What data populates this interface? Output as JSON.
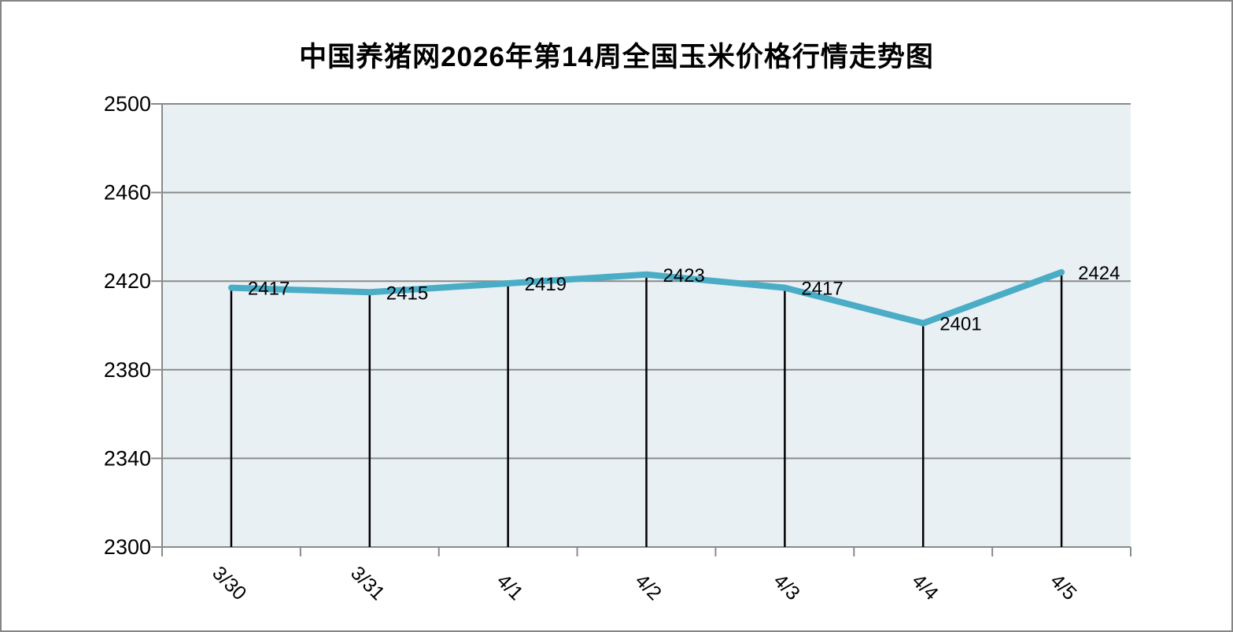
{
  "chart_data": {
    "type": "line",
    "title": "中国养猪网2026年第14周全国玉米价格行情走势图",
    "categories": [
      "3/30",
      "3/31",
      "4/1",
      "4/2",
      "4/3",
      "4/4",
      "4/5"
    ],
    "values": [
      2417,
      2415,
      2419,
      2423,
      2417,
      2401,
      2424
    ],
    "data_labels": [
      "2417",
      "2415",
      "2419",
      "2423",
      "2417",
      "2401",
      "2424"
    ],
    "xlabel": "",
    "ylabel": "",
    "ylim": [
      2300,
      2500
    ],
    "ytick_interval": 40,
    "yticks": [
      2500,
      2460,
      2420,
      2380,
      2340,
      2300
    ],
    "grid": true,
    "legend": false,
    "drop_lines": true,
    "colors": {
      "line": "#4BACC6",
      "plot_background": "#E9F0F4",
      "axis_and_grid": "#8A8A8A",
      "drop_line": "#000000",
      "text": "#000000",
      "page_background": "#FFFFFF",
      "frame_border": "#858585"
    }
  }
}
